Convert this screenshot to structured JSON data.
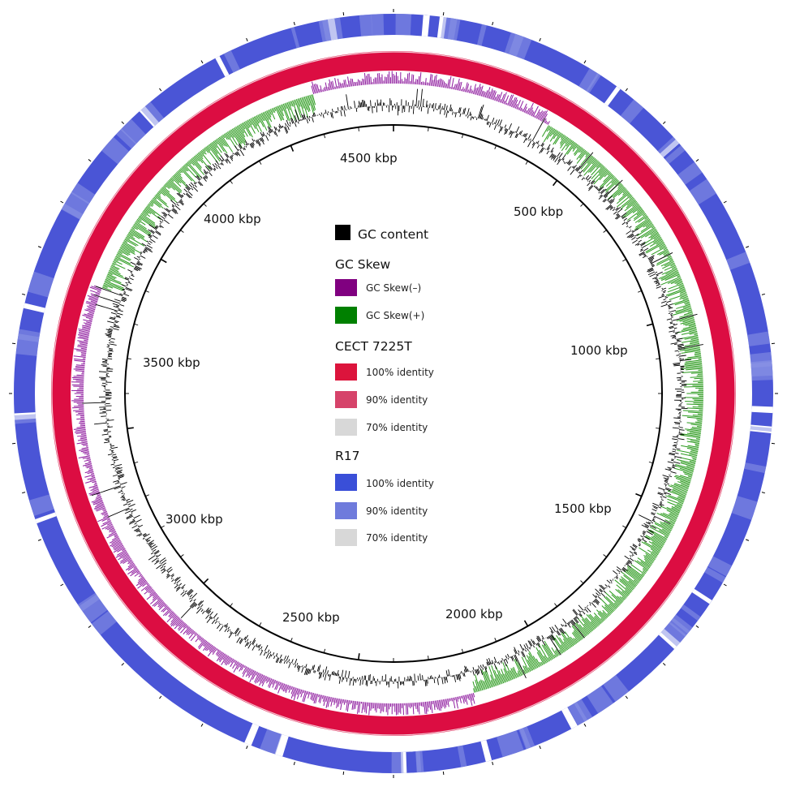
{
  "diagram": {
    "type": "circular-genome-map",
    "genome_length_kbp": 4800,
    "position_labels": [
      "4500 kbp",
      "500 kbp",
      "1000 kbp",
      "1500 kbp",
      "2000 kbp",
      "2500 kbp",
      "3000 kbp",
      "3500 kbp",
      "4000 kbp"
    ],
    "rings": [
      {
        "name": "R17",
        "color": "#4a55d6"
      },
      {
        "name": "CECT 7225T",
        "color": "#dc0d42"
      },
      {
        "name": "GC Skew",
        "color_neg": "#8e1a9e",
        "color_pos": "#2a9a1c"
      },
      {
        "name": "GC content",
        "color": "#000000"
      }
    ]
  },
  "legend": {
    "gc_content": {
      "label": "GC content",
      "color": "#000000"
    },
    "gc_skew": {
      "title": "GC Skew",
      "items": [
        {
          "label": "GC Skew(–)",
          "color": "#800080"
        },
        {
          "label": "GC Skew(+)",
          "color": "#008000"
        }
      ]
    },
    "cect": {
      "title": "CECT 7225T",
      "items": [
        {
          "label": "100% identity",
          "color": "#dc143c"
        },
        {
          "label": "90% identity",
          "color": "#d6436a"
        },
        {
          "label": "70% identity",
          "color": "#d8d8d8"
        }
      ]
    },
    "r17": {
      "title": "R17",
      "items": [
        {
          "label": "100% identity",
          "color": "#3a4fd8"
        },
        {
          "label": "90% identity",
          "color": "#6f7bdc"
        },
        {
          "label": "70% identity",
          "color": "#d8d8d8"
        }
      ]
    }
  }
}
